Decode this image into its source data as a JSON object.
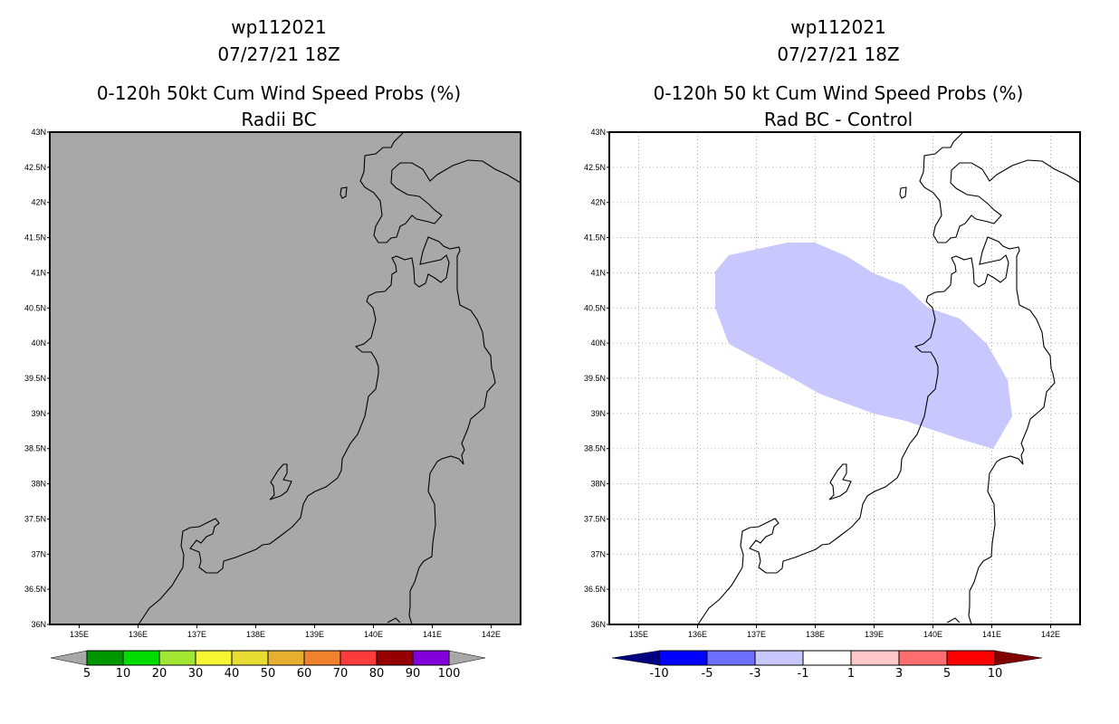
{
  "left_panel": {
    "title_line1": "wp112021",
    "title_line2": "07/27/21 18Z",
    "title_line3": "0-120h 50kt Cum Wind Speed Probs (%)",
    "title_line4": "Radii BC",
    "background_color": "#a8a8a8",
    "colorbar": {
      "labels": [
        "5",
        "10",
        "20",
        "30",
        "40",
        "50",
        "60",
        "70",
        "80",
        "90",
        "100"
      ],
      "colors": [
        "#009600",
        "#00dc00",
        "#a0e632",
        "#f5f532",
        "#e6dc32",
        "#e6af2d",
        "#f0822d",
        "#fa3c3c",
        "#960000",
        "#8200dc"
      ],
      "under_color": "#a8a8a8",
      "over_color": "#a8a8a8"
    }
  },
  "right_panel": {
    "title_line1": "wp112021",
    "title_line2": "07/27/21 18Z",
    "title_line3": "0-120h 50 kt Cum Wind Speed Probs (%)",
    "title_line4": "Rad BC - Control",
    "shaded_region_color": "#c8c8ff",
    "colorbar": {
      "labels": [
        "-10",
        "-5",
        "-3",
        "-1",
        "1",
        "3",
        "5",
        "10"
      ],
      "colors": [
        "#0000ff",
        "#6e6eff",
        "#c8c8ff",
        "#ffffff",
        "#ffc8c8",
        "#ff6e6e",
        "#ff0000"
      ],
      "under_color": "#000080",
      "over_color": "#800000"
    }
  },
  "axes": {
    "lat_labels": [
      "36N",
      "36.5N",
      "37N",
      "37.5N",
      "38N",
      "38.5N",
      "39N",
      "39.5N",
      "40N",
      "40.5N",
      "41N",
      "41.5N",
      "42N",
      "42.5N",
      "43N"
    ],
    "lon_labels": [
      "135E",
      "136E",
      "137E",
      "138E",
      "139E",
      "140E",
      "141E",
      "142E"
    ]
  }
}
